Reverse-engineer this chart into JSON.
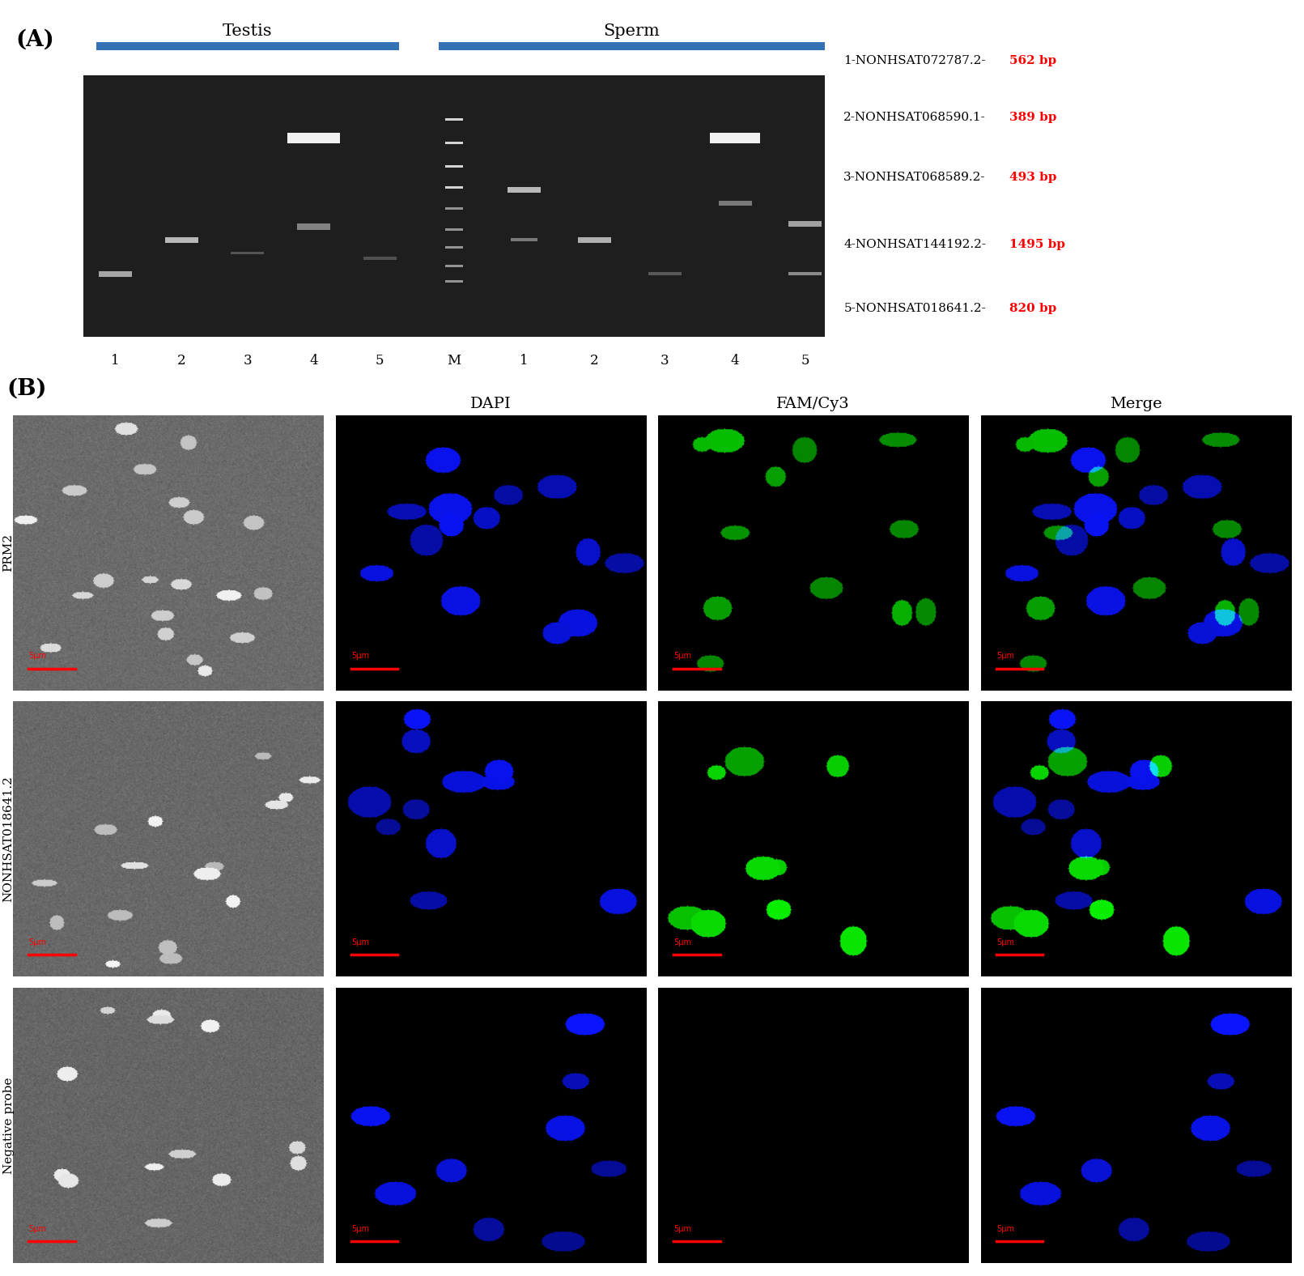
{
  "panel_A_label": "(A)",
  "panel_B_label": "(B)",
  "testis_label": "Testis",
  "sperm_label": "Sperm",
  "lane_labels_testis": [
    "1",
    "2",
    "3",
    "4",
    "5"
  ],
  "lane_labels_sperm": [
    "M",
    "1",
    "2",
    "3",
    "4",
    "5"
  ],
  "gene_labels": [
    {
      "prefix": "1-NONHSAT072787.2-",
      "bp": "562 bp"
    },
    {
      "prefix": "2-NONHSAT068590.1-",
      "bp": "389 bp"
    },
    {
      "prefix": "3-NONHSAT068589.2-",
      "bp": "493 bp"
    },
    {
      "prefix": "4-NONHSAT144192.2-",
      "bp": "1495 bp"
    },
    {
      "prefix": "5-NONHSAT018641.2-",
      "bp": "820 bp"
    }
  ],
  "col_headers": [
    "",
    "DAPI",
    "FAM/Cy3",
    "Merge"
  ],
  "row_labels": [
    "PRM2",
    "NONHSAT018641.2",
    "Negative probe"
  ],
  "scale_bar_label": "5μm",
  "blue_bar_color": "#3372B5",
  "red_color": "#FF0000",
  "black_color": "#000000",
  "white_color": "#FFFFFF",
  "background_color": "#FFFFFF"
}
